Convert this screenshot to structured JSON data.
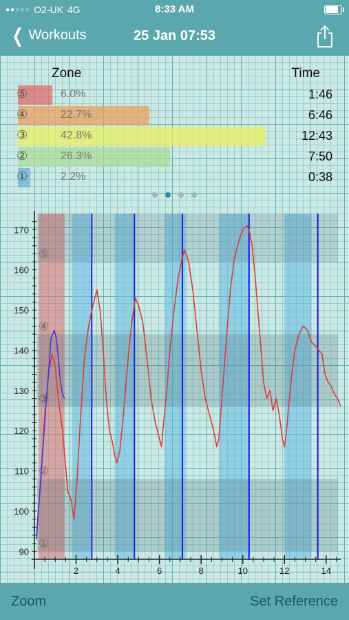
{
  "status": {
    "carrier": "O2-UK",
    "network": "4G",
    "time": "8:33 AM",
    "signal_dots": "●●○○○",
    "battery_level": 0.9
  },
  "nav": {
    "back_label": "Workouts",
    "title": "25 Jan 07:53"
  },
  "zones": {
    "zone_header": "Zone",
    "time_header": "Time",
    "rows": [
      {
        "symbol": "⑤",
        "percent": "6.0%",
        "time": "1:46",
        "fraction": 0.06,
        "color": "#e06b6b"
      },
      {
        "symbol": "④",
        "percent": "22.7%",
        "time": "6:46",
        "fraction": 0.227,
        "color": "#e9a060"
      },
      {
        "symbol": "③",
        "percent": "42.8%",
        "time": "12:43",
        "fraction": 0.428,
        "color": "#e8f060"
      },
      {
        "symbol": "②",
        "percent": "26.3%",
        "time": "7:50",
        "fraction": 0.263,
        "color": "#a9dc98"
      },
      {
        "symbol": "①",
        "percent": "2.2%",
        "time": "0:38",
        "fraction": 0.022,
        "color": "#6ab2d8"
      }
    ]
  },
  "pager": {
    "count": 4,
    "active": 1
  },
  "chart_data": {
    "type": "line",
    "xlim": [
      0,
      14.7
    ],
    "ylim": [
      88,
      174
    ],
    "x_ticks": [
      2,
      4,
      6,
      8,
      10,
      12,
      14
    ],
    "y_ticks": [
      90,
      100,
      110,
      120,
      130,
      140,
      150,
      160,
      170
    ],
    "zone_labels": [
      "①",
      "②",
      "③",
      "④",
      "⑤"
    ],
    "zone_label_y": [
      92,
      110,
      128,
      146,
      164
    ],
    "zone_bands": [
      {
        "from": 126,
        "to": 144,
        "color": "rgba(70,95,110,0.22)"
      },
      {
        "from": 90,
        "to": 108,
        "color": "rgba(70,95,110,0.22)"
      },
      {
        "from": 162,
        "to": 174,
        "color": "rgba(70,95,110,0.18)"
      }
    ],
    "interval_bands": [
      {
        "x0": 0.2,
        "x1": 1.45,
        "color": "rgba(220,110,110,0.55)"
      },
      {
        "x0": 1.8,
        "x1": 2.7,
        "color": "rgba(100,185,225,0.55)"
      },
      {
        "x0": 3.85,
        "x1": 4.8,
        "color": "rgba(100,185,225,0.55)"
      },
      {
        "x0": 6.25,
        "x1": 7.25,
        "color": "rgba(100,185,225,0.55)"
      },
      {
        "x0": 8.85,
        "x1": 10.3,
        "color": "rgba(100,185,225,0.55)"
      },
      {
        "x0": 12.0,
        "x1": 13.3,
        "color": "rgba(100,185,225,0.55)"
      }
    ],
    "markers": [
      2.75,
      4.8,
      7.1,
      10.3,
      13.6
    ],
    "series": [
      {
        "color": "#dd3a3a",
        "x": [
          0.1,
          0.2,
          0.35,
          0.5,
          0.7,
          0.85,
          1.0,
          1.15,
          1.35,
          1.45,
          1.6,
          1.75,
          1.9,
          2.05,
          2.2,
          2.4,
          2.6,
          2.8,
          3.0,
          3.15,
          3.3,
          3.45,
          3.6,
          3.75,
          3.85,
          3.95,
          4.1,
          4.25,
          4.4,
          4.55,
          4.7,
          4.85,
          5.0,
          5.2,
          5.4,
          5.6,
          5.8,
          6.0,
          6.1,
          6.2,
          6.35,
          6.5,
          6.7,
          6.9,
          7.1,
          7.2,
          7.4,
          7.6,
          7.8,
          8.0,
          8.2,
          8.4,
          8.6,
          8.75,
          8.85,
          9.0,
          9.2,
          9.4,
          9.6,
          9.8,
          10.0,
          10.2,
          10.3,
          10.45,
          10.6,
          10.8,
          11.0,
          11.15,
          11.3,
          11.45,
          11.6,
          11.75,
          11.9,
          12.0,
          12.1,
          12.2,
          12.35,
          12.5,
          12.7,
          12.9,
          13.1,
          13.3,
          13.5,
          13.65,
          13.8,
          13.95,
          14.1,
          14.25,
          14.4,
          14.55,
          14.7
        ],
        "y": [
          94,
          101,
          111,
          124,
          135,
          139,
          136,
          128,
          120,
          114,
          105,
          103,
          98,
          108,
          122,
          138,
          146,
          151,
          155,
          150,
          140,
          128,
          120,
          117,
          114,
          112,
          115,
          123,
          132,
          141,
          148,
          153,
          151,
          147,
          138,
          128,
          122,
          118,
          116,
          122,
          130,
          140,
          150,
          158,
          163,
          165,
          162,
          155,
          145,
          135,
          128,
          124,
          120,
          116,
          118,
          128,
          142,
          155,
          163,
          167,
          170,
          171,
          170,
          166,
          158,
          145,
          132,
          128,
          130,
          125,
          128,
          124,
          118,
          116,
          120,
          126,
          134,
          140,
          144,
          146,
          145,
          142,
          141,
          140,
          139,
          134,
          132,
          131,
          129,
          128,
          126
        ]
      },
      {
        "color": "#3a3ae0",
        "x": [
          0.1,
          0.25,
          0.4,
          0.55,
          0.7,
          0.8,
          0.95,
          1.05,
          1.15,
          1.25,
          1.35,
          1.45
        ],
        "y": [
          93,
          104,
          115,
          126,
          136,
          143,
          145,
          143,
          138,
          132,
          129,
          128
        ]
      }
    ]
  },
  "bottom": {
    "zoom_label": "Zoom",
    "reference_label": "Set Reference"
  }
}
